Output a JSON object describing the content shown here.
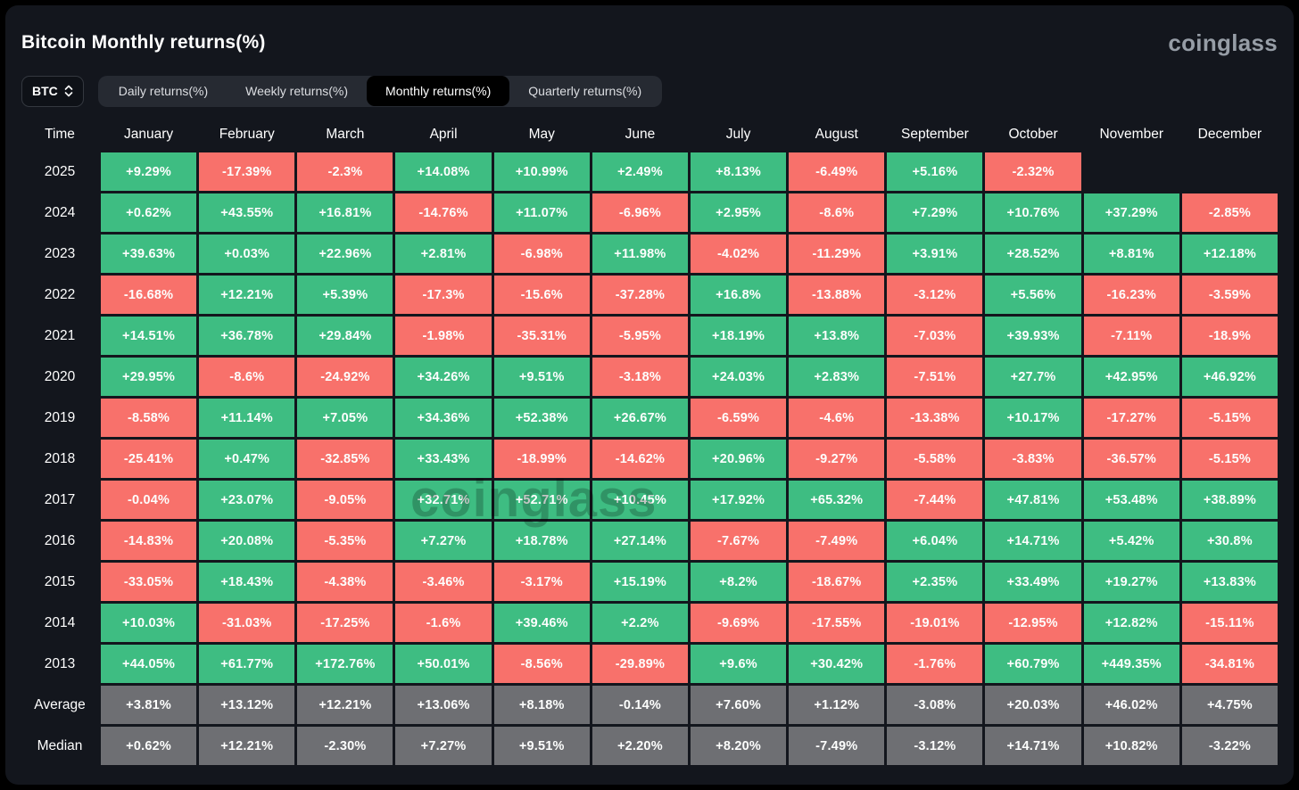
{
  "header": {
    "title": "Bitcoin Monthly returns(%)",
    "logo": "coinglass",
    "watermark": "coinglass",
    "symbol_select": {
      "value": "BTC"
    },
    "tabs": [
      {
        "label": "Daily returns(%)",
        "active": false
      },
      {
        "label": "Weekly returns(%)",
        "active": false
      },
      {
        "label": "Monthly returns(%)",
        "active": true
      },
      {
        "label": "Quarterly returns(%)",
        "active": false
      }
    ]
  },
  "theme": {
    "card": "#13161d",
    "positive": "#3ebd82",
    "negative": "#f8716b",
    "neutral": "#6e6f73"
  },
  "chart_data": {
    "type": "heatmap",
    "title": "Bitcoin Monthly returns(%)",
    "columns": [
      "Time",
      "January",
      "February",
      "March",
      "April",
      "May",
      "June",
      "July",
      "August",
      "September",
      "October",
      "November",
      "December"
    ],
    "rows": [
      {
        "label": "2025",
        "values": [
          "+9.29%",
          "-17.39%",
          "-2.3%",
          "+14.08%",
          "+10.99%",
          "+2.49%",
          "+8.13%",
          "-6.49%",
          "+5.16%",
          "-2.32%",
          null,
          null
        ]
      },
      {
        "label": "2024",
        "values": [
          "+0.62%",
          "+43.55%",
          "+16.81%",
          "-14.76%",
          "+11.07%",
          "-6.96%",
          "+2.95%",
          "-8.6%",
          "+7.29%",
          "+10.76%",
          "+37.29%",
          "-2.85%"
        ]
      },
      {
        "label": "2023",
        "values": [
          "+39.63%",
          "+0.03%",
          "+22.96%",
          "+2.81%",
          "-6.98%",
          "+11.98%",
          "-4.02%",
          "-11.29%",
          "+3.91%",
          "+28.52%",
          "+8.81%",
          "+12.18%"
        ]
      },
      {
        "label": "2022",
        "values": [
          "-16.68%",
          "+12.21%",
          "+5.39%",
          "-17.3%",
          "-15.6%",
          "-37.28%",
          "+16.8%",
          "-13.88%",
          "-3.12%",
          "+5.56%",
          "-16.23%",
          "-3.59%"
        ]
      },
      {
        "label": "2021",
        "values": [
          "+14.51%",
          "+36.78%",
          "+29.84%",
          "-1.98%",
          "-35.31%",
          "-5.95%",
          "+18.19%",
          "+13.8%",
          "-7.03%",
          "+39.93%",
          "-7.11%",
          "-18.9%"
        ]
      },
      {
        "label": "2020",
        "values": [
          "+29.95%",
          "-8.6%",
          "-24.92%",
          "+34.26%",
          "+9.51%",
          "-3.18%",
          "+24.03%",
          "+2.83%",
          "-7.51%",
          "+27.7%",
          "+42.95%",
          "+46.92%"
        ]
      },
      {
        "label": "2019",
        "values": [
          "-8.58%",
          "+11.14%",
          "+7.05%",
          "+34.36%",
          "+52.38%",
          "+26.67%",
          "-6.59%",
          "-4.6%",
          "-13.38%",
          "+10.17%",
          "-17.27%",
          "-5.15%"
        ]
      },
      {
        "label": "2018",
        "values": [
          "-25.41%",
          "+0.47%",
          "-32.85%",
          "+33.43%",
          "-18.99%",
          "-14.62%",
          "+20.96%",
          "-9.27%",
          "-5.58%",
          "-3.83%",
          "-36.57%",
          "-5.15%"
        ]
      },
      {
        "label": "2017",
        "values": [
          "-0.04%",
          "+23.07%",
          "-9.05%",
          "+32.71%",
          "+52.71%",
          "+10.45%",
          "+17.92%",
          "+65.32%",
          "-7.44%",
          "+47.81%",
          "+53.48%",
          "+38.89%"
        ]
      },
      {
        "label": "2016",
        "values": [
          "-14.83%",
          "+20.08%",
          "-5.35%",
          "+7.27%",
          "+18.78%",
          "+27.14%",
          "-7.67%",
          "-7.49%",
          "+6.04%",
          "+14.71%",
          "+5.42%",
          "+30.8%"
        ]
      },
      {
        "label": "2015",
        "values": [
          "-33.05%",
          "+18.43%",
          "-4.38%",
          "-3.46%",
          "-3.17%",
          "+15.19%",
          "+8.2%",
          "-18.67%",
          "+2.35%",
          "+33.49%",
          "+19.27%",
          "+13.83%"
        ]
      },
      {
        "label": "2014",
        "values": [
          "+10.03%",
          "-31.03%",
          "-17.25%",
          "-1.6%",
          "+39.46%",
          "+2.2%",
          "-9.69%",
          "-17.55%",
          "-19.01%",
          "-12.95%",
          "+12.82%",
          "-15.11%"
        ]
      },
      {
        "label": "2013",
        "values": [
          "+44.05%",
          "+61.77%",
          "+172.76%",
          "+50.01%",
          "-8.56%",
          "-29.89%",
          "+9.6%",
          "+30.42%",
          "-1.76%",
          "+60.79%",
          "+449.35%",
          "-34.81%"
        ]
      },
      {
        "label": "Average",
        "stat": true,
        "values": [
          "+3.81%",
          "+13.12%",
          "+12.21%",
          "+13.06%",
          "+8.18%",
          "-0.14%",
          "+7.60%",
          "+1.12%",
          "-3.08%",
          "+20.03%",
          "+46.02%",
          "+4.75%"
        ]
      },
      {
        "label": "Median",
        "stat": true,
        "values": [
          "+0.62%",
          "+12.21%",
          "-2.30%",
          "+7.27%",
          "+9.51%",
          "+2.20%",
          "+8.20%",
          "-7.49%",
          "-3.12%",
          "+14.71%",
          "+10.82%",
          "-3.22%"
        ]
      }
    ]
  }
}
